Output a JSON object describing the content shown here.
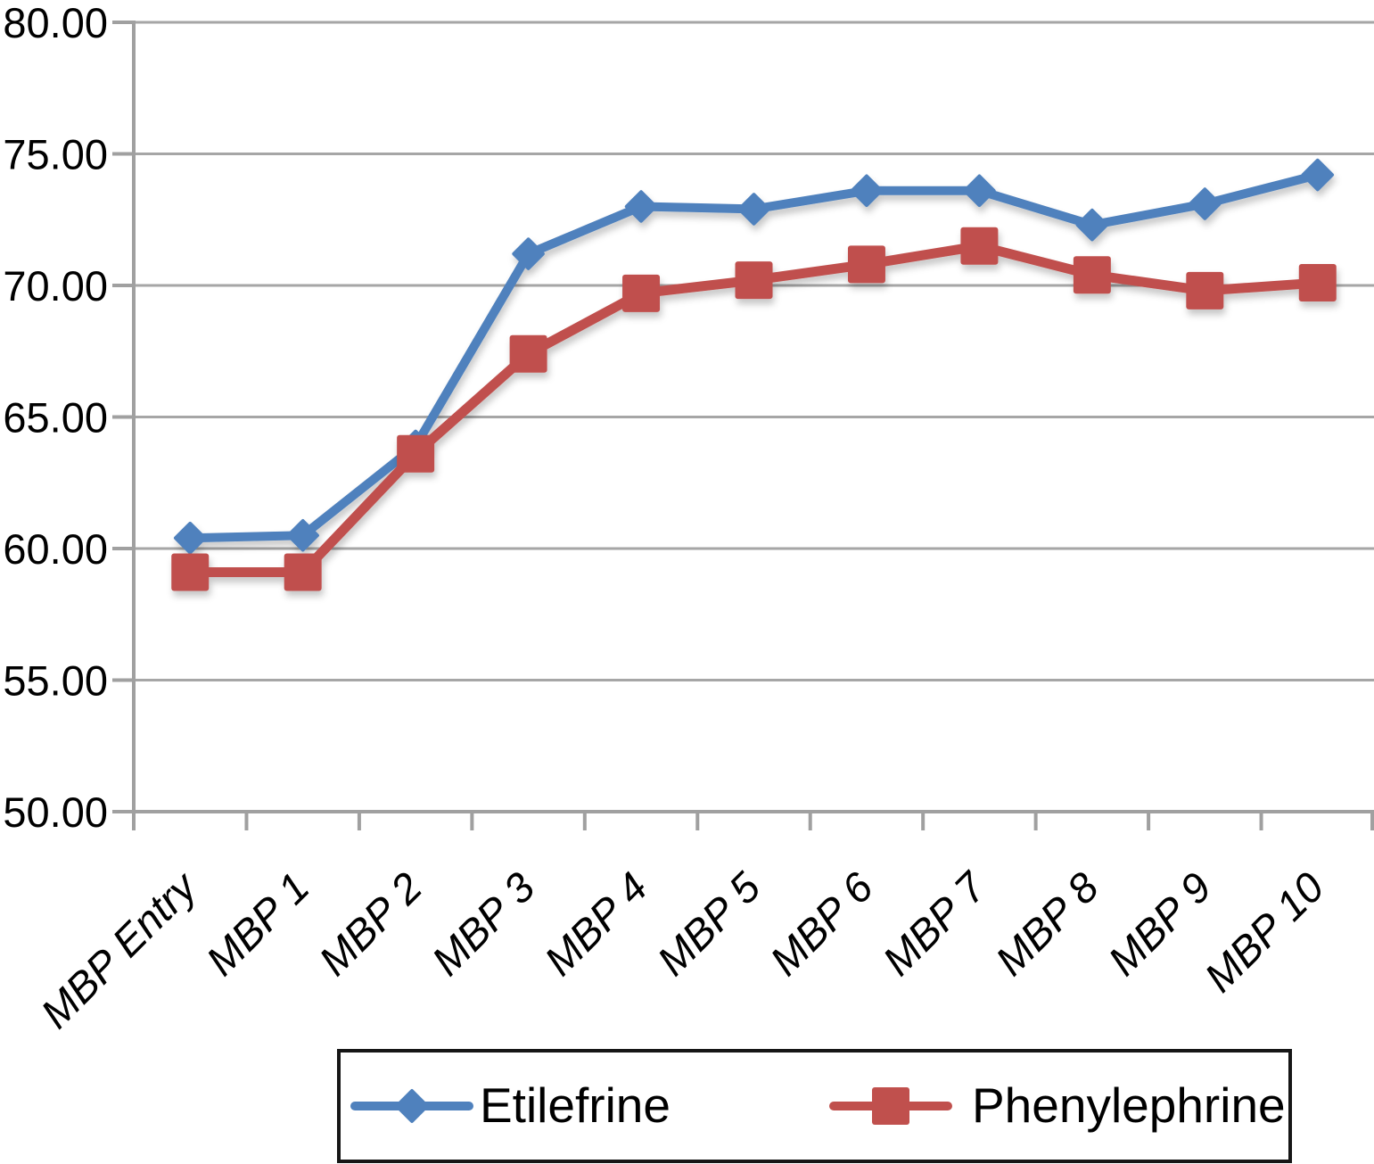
{
  "chart_data": {
    "type": "line",
    "title": "",
    "xlabel": "",
    "ylabel": "",
    "categories": [
      "MBP Entry",
      "MBP 1",
      "MBP 2",
      "MBP 3",
      "MBP 4",
      "MBP 5",
      "MBP 6",
      "MBP 7",
      "MBP 8",
      "MBP 9",
      "MBP 10"
    ],
    "series": [
      {
        "name": "Etilefrine",
        "color": "#4F81BD",
        "marker": "diamond",
        "line_width": 10,
        "values": [
          60.4,
          60.5,
          63.9,
          71.2,
          73.0,
          72.9,
          73.6,
          73.6,
          72.3,
          73.1,
          74.2
        ]
      },
      {
        "name": "Phenylephrine",
        "color": "#C0504D",
        "marker": "square",
        "line_width": 11,
        "values": [
          59.1,
          59.1,
          63.6,
          67.4,
          69.7,
          70.2,
          70.8,
          71.5,
          70.4,
          69.8,
          70.1
        ]
      }
    ],
    "ylim": [
      50,
      80
    ],
    "y_tick_step": 5,
    "y_tick_labels": [
      "50.00",
      "55.00",
      "60.00",
      "65.00",
      "70.00",
      "75.00",
      "80.00"
    ],
    "grid": true,
    "legend_position": "bottom"
  },
  "colors": {
    "background": "#FFFFFF",
    "gridline": "#A6A6A6",
    "axis": "#A0A0A0",
    "label_text": "#000000",
    "legend_border": "#161616",
    "series_blue": "#4F81BD",
    "series_red": "#C0504D"
  }
}
